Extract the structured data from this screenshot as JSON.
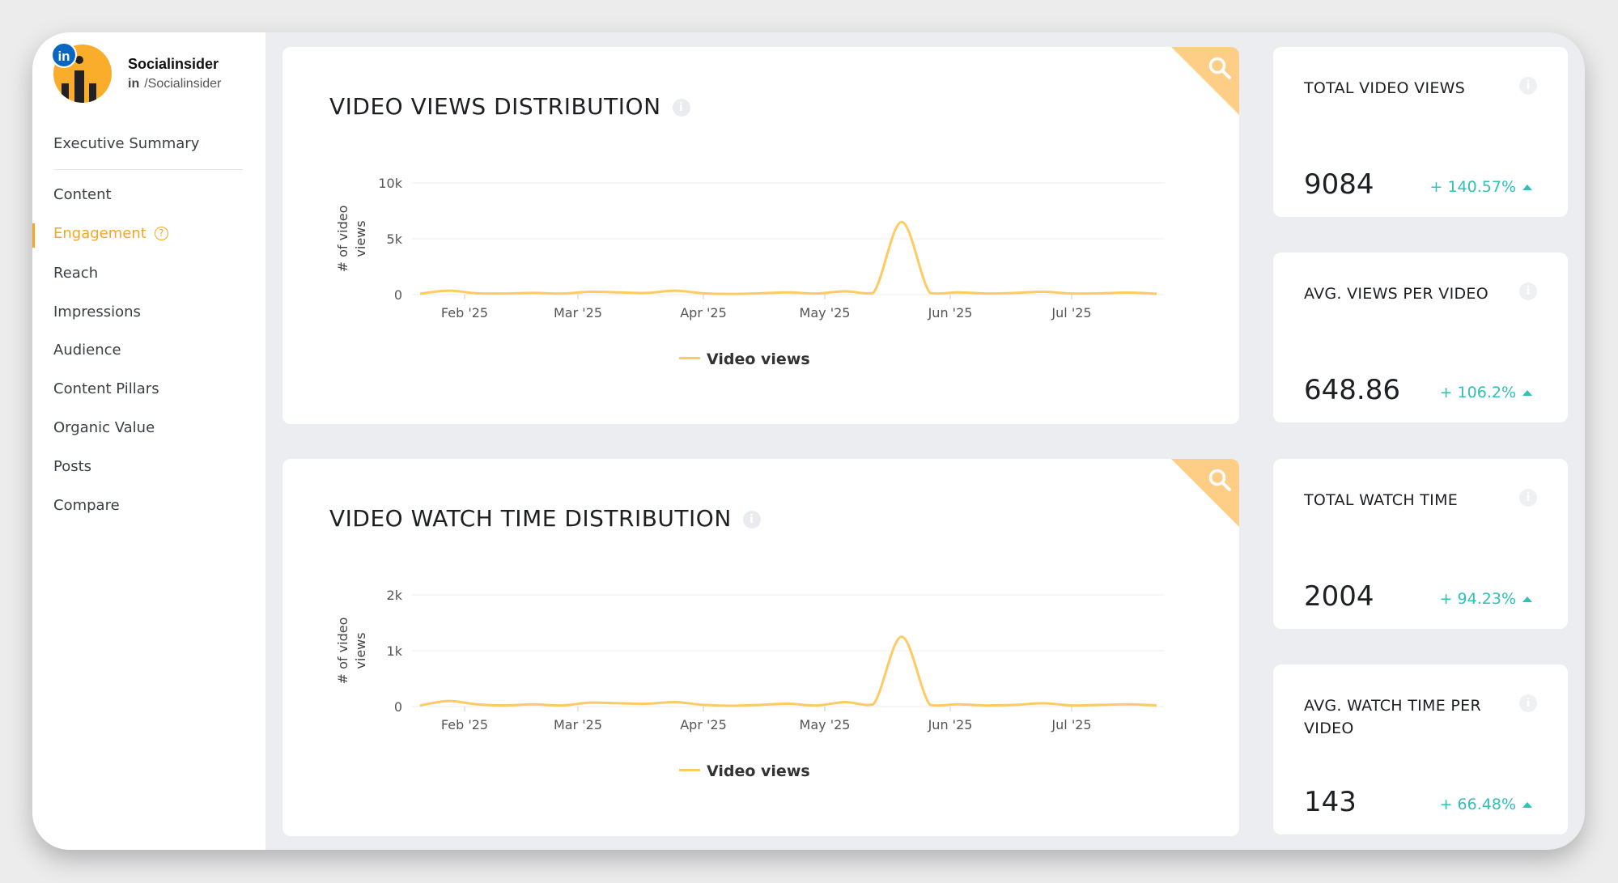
{
  "profile": {
    "badge": "in",
    "name": "Socialinsider",
    "network_glyph": "in",
    "handle": "/Socialinsider"
  },
  "nav": {
    "items": [
      {
        "label": "Executive Summary"
      },
      {
        "label": "Content"
      },
      {
        "label": "Engagement",
        "active": true
      },
      {
        "label": "Reach"
      },
      {
        "label": "Impressions"
      },
      {
        "label": "Audience"
      },
      {
        "label": "Content Pillars"
      },
      {
        "label": "Organic Value"
      },
      {
        "label": "Posts"
      },
      {
        "label": "Compare"
      }
    ],
    "help_glyph": "?"
  },
  "charts": [
    {
      "title": "VIDEO VIEWS DISTRIBUTION",
      "legend": "Video views",
      "icons": {
        "info": "info-icon",
        "zoom": "search-icon"
      }
    },
    {
      "title": "VIDEO WATCH TIME DISTRIBUTION",
      "legend": "Video views",
      "icons": {
        "info": "info-icon",
        "zoom": "search-icon"
      }
    }
  ],
  "chart_data": [
    {
      "type": "line",
      "ylabel": "# of video views",
      "xlabel": "",
      "x_ticks": [
        "Feb '25",
        "Mar '25",
        "Apr '25",
        "May '25",
        "Jun '25",
        "Jul '25"
      ],
      "y_ticks": [
        "0",
        "5k",
        "10k"
      ],
      "ylim": [
        0,
        10000
      ],
      "grid": true,
      "legend_position": "bottom",
      "series": [
        {
          "name": "Video views",
          "color": "#fecb63",
          "x": [
            "2025-01-21",
            "2025-01-28",
            "2025-02-04",
            "2025-02-11",
            "2025-02-18",
            "2025-02-25",
            "2025-03-04",
            "2025-03-11",
            "2025-03-18",
            "2025-03-25",
            "2025-04-01",
            "2025-04-08",
            "2025-04-15",
            "2025-04-22",
            "2025-04-29",
            "2025-05-06",
            "2025-05-13",
            "2025-05-20",
            "2025-05-27",
            "2025-06-03",
            "2025-06-10",
            "2025-06-17",
            "2025-06-24",
            "2025-07-01",
            "2025-07-08",
            "2025-07-15",
            "2025-07-22"
          ],
          "y": [
            80,
            350,
            120,
            100,
            150,
            90,
            250,
            200,
            150,
            350,
            120,
            60,
            120,
            200,
            100,
            300,
            150,
            6500,
            150,
            200,
            100,
            150,
            250,
            100,
            120,
            180,
            80
          ]
        }
      ]
    },
    {
      "type": "line",
      "ylabel": "# of video views",
      "xlabel": "",
      "x_ticks": [
        "Feb '25",
        "Mar '25",
        "Apr '25",
        "May '25",
        "Jun '25",
        "Jul '25"
      ],
      "y_ticks": [
        "0",
        "1k",
        "2k"
      ],
      "ylim": [
        0,
        2000
      ],
      "grid": true,
      "legend_position": "bottom",
      "series": [
        {
          "name": "Video views",
          "color": "#fecb63",
          "x": [
            "2025-01-21",
            "2025-01-28",
            "2025-02-04",
            "2025-02-11",
            "2025-02-18",
            "2025-02-25",
            "2025-03-04",
            "2025-03-11",
            "2025-03-18",
            "2025-03-25",
            "2025-04-01",
            "2025-04-08",
            "2025-04-15",
            "2025-04-22",
            "2025-04-29",
            "2025-05-06",
            "2025-05-13",
            "2025-05-20",
            "2025-05-27",
            "2025-06-03",
            "2025-06-10",
            "2025-06-17",
            "2025-06-24",
            "2025-07-01",
            "2025-07-08",
            "2025-07-15",
            "2025-07-22"
          ],
          "y": [
            20,
            100,
            40,
            20,
            40,
            20,
            70,
            60,
            50,
            80,
            30,
            15,
            30,
            50,
            20,
            80,
            40,
            1250,
            30,
            40,
            20,
            30,
            60,
            20,
            30,
            40,
            20
          ]
        }
      ]
    }
  ],
  "kpis": [
    {
      "label": "TOTAL VIDEO VIEWS",
      "value": "9084",
      "change": "+ 140.57%",
      "trend": "up"
    },
    {
      "label": "AVG. VIEWS PER VIDEO",
      "value": "648.86",
      "change": "+ 106.2%",
      "trend": "up"
    },
    {
      "label": "TOTAL WATCH TIME",
      "value": "2004",
      "change": "+ 94.23%",
      "trend": "up"
    },
    {
      "label": "AVG. WATCH TIME PER VIDEO",
      "value": "143",
      "change": "+ 66.48%",
      "trend": "up"
    }
  ],
  "colors": {
    "accent": "#f5a623",
    "positive": "#2ec1b4",
    "line": "#fecb63",
    "corner": "#fecd86",
    "linkedin": "#0a66c2"
  }
}
